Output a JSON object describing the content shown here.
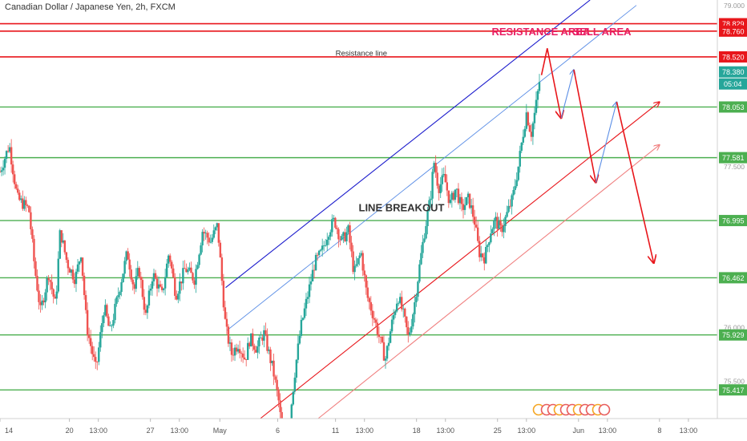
{
  "title": "Canadian Dollar / Japanese Yen, 2h, FXCM",
  "colors": {
    "up": "#26a69a",
    "down": "#ef5350",
    "red_line": "#e8161b",
    "green_line": "#4caf50",
    "blue_channel": "#1a1acc",
    "blue_thin": "#5b8ee6",
    "annotation": "#e91e63",
    "axis_bg": "#ffffff"
  },
  "chart_data": {
    "type": "candlestick",
    "instrument": "Canadian Dollar / Japanese Yen",
    "timeframe": "2h",
    "source": "FXCM",
    "ylim": [
      75.15,
      79.05
    ],
    "y_ticks_faint": [
      "79.000",
      "77.500",
      "76.000",
      "75.500"
    ],
    "x_ticks": [
      {
        "label": "14",
        "x": 0
      },
      {
        "label": "20",
        "x": 6
      },
      {
        "label": "13:00",
        "x": 8.5
      },
      {
        "label": "27",
        "x": 13
      },
      {
        "label": "13:00",
        "x": 15.5
      },
      {
        "label": "May",
        "x": 19
      },
      {
        "label": "6",
        "x": 24
      },
      {
        "label": "11",
        "x": 29
      },
      {
        "label": "13:00",
        "x": 31.5
      },
      {
        "label": "18",
        "x": 36
      },
      {
        "label": "13:00",
        "x": 38.5
      },
      {
        "label": "25",
        "x": 43
      },
      {
        "label": "13:00",
        "x": 45.5
      },
      {
        "label": "Jun",
        "x": 50
      },
      {
        "label": "13:00",
        "x": 52.5
      },
      {
        "label": "8",
        "x": 57
      },
      {
        "label": "13:00",
        "x": 59.5
      }
    ],
    "xlim": [
      0,
      62
    ],
    "red_levels": [
      {
        "label": "78.829",
        "value": 78.829
      },
      {
        "label": "78.760",
        "value": 78.76
      },
      {
        "label": "78.520",
        "value": 78.52
      }
    ],
    "green_levels": [
      {
        "label": "78.053",
        "value": 78.053
      },
      {
        "label": "77.581",
        "value": 77.581
      },
      {
        "label": "76.995",
        "value": 76.995
      },
      {
        "label": "76.462",
        "value": 76.462
      },
      {
        "label": "75.929",
        "value": 75.929
      },
      {
        "label": "75.417",
        "value": 75.417
      }
    ],
    "current_price": {
      "label": "78.380",
      "value": 78.38,
      "countdown": "05:04"
    },
    "price_path": [
      [
        0,
        77.45
      ],
      [
        0.8,
        77.7
      ],
      [
        1.5,
        77.2
      ],
      [
        2.5,
        77.1
      ],
      [
        3,
        76.55
      ],
      [
        3.5,
        76.15
      ],
      [
        4.2,
        76.5
      ],
      [
        4.8,
        76.2
      ],
      [
        5.2,
        76.9
      ],
      [
        5.8,
        76.6
      ],
      [
        6.5,
        76.45
      ],
      [
        7,
        76.7
      ],
      [
        7.5,
        76.0
      ],
      [
        8.3,
        75.6
      ],
      [
        9,
        76.2
      ],
      [
        9.5,
        75.95
      ],
      [
        10.2,
        76.3
      ],
      [
        11,
        76.7
      ],
      [
        11.6,
        76.35
      ],
      [
        12,
        76.55
      ],
      [
        12.6,
        76.1
      ],
      [
        13.2,
        76.5
      ],
      [
        14,
        76.3
      ],
      [
        14.6,
        76.7
      ],
      [
        15.2,
        76.3
      ],
      [
        16,
        76.55
      ],
      [
        16.8,
        76.45
      ],
      [
        17.5,
        76.9
      ],
      [
        18.2,
        76.8
      ],
      [
        18.8,
        76.95
      ],
      [
        19.5,
        76.0
      ],
      [
        20,
        75.75
      ],
      [
        20.6,
        75.85
      ],
      [
        21.2,
        75.7
      ],
      [
        21.6,
        75.9
      ],
      [
        22.2,
        75.8
      ],
      [
        22.8,
        75.95
      ],
      [
        23.6,
        75.6
      ],
      [
        24.1,
        75.3
      ],
      [
        24.5,
        74.9
      ],
      [
        25,
        75.1
      ],
      [
        25.5,
        75.6
      ],
      [
        26,
        76.0
      ],
      [
        26.6,
        76.3
      ],
      [
        27.2,
        76.6
      ],
      [
        27.8,
        76.7
      ],
      [
        28.4,
        76.9
      ],
      [
        28.9,
        77.0
      ],
      [
        29.5,
        76.8
      ],
      [
        30.1,
        76.9
      ],
      [
        30.6,
        76.5
      ],
      [
        31.2,
        76.7
      ],
      [
        31.7,
        76.3
      ],
      [
        32.3,
        76.1
      ],
      [
        32.8,
        75.9
      ],
      [
        33.3,
        75.7
      ],
      [
        33.8,
        76.0
      ],
      [
        34.4,
        76.3
      ],
      [
        34.9,
        76.1
      ],
      [
        35.3,
        75.9
      ],
      [
        35.8,
        76.2
      ],
      [
        36.3,
        76.6
      ],
      [
        36.7,
        76.9
      ],
      [
        37.2,
        77.2
      ],
      [
        37.5,
        77.55
      ],
      [
        37.9,
        77.3
      ],
      [
        38.4,
        77.4
      ],
      [
        38.9,
        77.15
      ],
      [
        39.4,
        77.3
      ],
      [
        39.9,
        77.1
      ],
      [
        40.5,
        77.2
      ],
      [
        41,
        77.0
      ],
      [
        41.4,
        76.7
      ],
      [
        41.9,
        76.65
      ],
      [
        42.4,
        76.9
      ],
      [
        42.8,
        77.0
      ],
      [
        43.3,
        76.9
      ],
      [
        43.8,
        77.05
      ],
      [
        44.3,
        77.2
      ],
      [
        44.8,
        77.5
      ],
      [
        45.2,
        77.8
      ],
      [
        45.5,
        78.0
      ],
      [
        45.9,
        77.8
      ],
      [
        46.3,
        78.05
      ],
      [
        46.7,
        78.35
      ]
    ],
    "channel_lines": [
      {
        "color": "blue_channel",
        "x0": 19.5,
        "y0": 76.37,
        "x1": 51,
        "y1": 79.05
      },
      {
        "color": "blue_thin",
        "x0": 19.6,
        "y0": 75.97,
        "x1": 55,
        "y1": 79.0
      },
      {
        "color": "red_line",
        "x0": 22.5,
        "y0": 75.15,
        "x1": 57,
        "y1": 78.1,
        "arrow": true
      },
      {
        "color": "red_line_thin",
        "x0": 27.5,
        "y0": 75.15,
        "x1": 57,
        "y1": 77.7,
        "arrow": true
      }
    ],
    "projection_arrows": [
      {
        "color": "red_line",
        "points": [
          [
            46.8,
            78.35
          ],
          [
            47.3,
            78.6
          ],
          [
            48.5,
            77.95
          ]
        ]
      },
      {
        "color": "blue_thin",
        "points": [
          [
            48.5,
            77.95
          ],
          [
            49.6,
            78.4
          ]
        ]
      },
      {
        "color": "red_line",
        "points": [
          [
            49.6,
            78.4
          ],
          [
            51.5,
            77.35
          ]
        ]
      },
      {
        "color": "blue_thin",
        "points": [
          [
            51.5,
            77.35
          ],
          [
            53.3,
            78.1
          ]
        ]
      },
      {
        "color": "red_line",
        "points": [
          [
            53.3,
            78.1
          ],
          [
            56.5,
            76.6
          ]
        ]
      }
    ],
    "annotations": [
      {
        "text": "RESISTANCE AREA",
        "x": 42.5,
        "y": 78.72
      },
      {
        "text": "SELL AREA",
        "x": 49.5,
        "y": 78.72
      },
      {
        "text": "Resistance line",
        "x": 29,
        "y": 78.53
      },
      {
        "text": "LINE BREAKOUT",
        "x": 31,
        "y": 77.08
      }
    ]
  }
}
